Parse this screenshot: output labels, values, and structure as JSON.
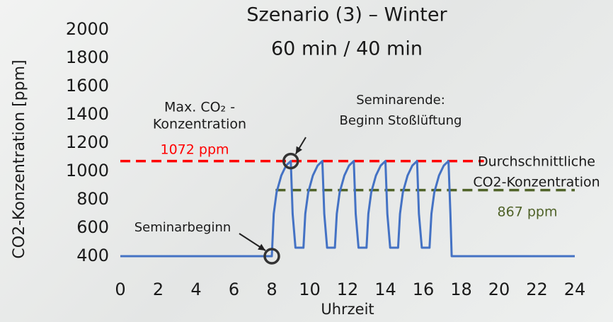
{
  "chart_data": {
    "type": "line",
    "title": [
      "Szenario (3) – Winter",
      "60 min / 40 min"
    ],
    "xlabel": "Uhrzeit",
    "ylabel": "CO2-Konzentration [ppm]",
    "x": [
      0,
      8,
      8.1,
      8.25,
      8.5,
      8.75,
      9,
      9.1,
      9.25,
      9.67,
      9.77,
      9.92,
      10.17,
      10.42,
      10.67,
      10.77,
      10.92,
      11.33,
      11.43,
      11.58,
      11.83,
      12.08,
      12.33,
      12.43,
      12.58,
      13,
      13.1,
      13.25,
      13.5,
      13.75,
      14,
      14.1,
      14.25,
      14.67,
      14.77,
      14.92,
      15.17,
      15.42,
      15.67,
      15.77,
      15.92,
      16.33,
      16.43,
      16.58,
      16.83,
      17.08,
      17.33,
      17.43,
      17.5,
      24
    ],
    "values": [
      400,
      400,
      700,
      850,
      970,
      1040,
      1072,
      700,
      460,
      460,
      700,
      850,
      970,
      1040,
      1072,
      700,
      460,
      460,
      700,
      850,
      970,
      1040,
      1072,
      700,
      460,
      460,
      700,
      850,
      970,
      1040,
      1072,
      700,
      460,
      460,
      700,
      850,
      970,
      1040,
      1072,
      700,
      460,
      460,
      700,
      850,
      970,
      1040,
      1072,
      700,
      400,
      400
    ],
    "color": "#4472c4",
    "xlim": [
      0,
      24
    ],
    "xticks": [
      0,
      2,
      4,
      6,
      8,
      10,
      12,
      14,
      16,
      18,
      20,
      22,
      24
    ],
    "ylim": [
      400,
      2000
    ],
    "yticks": [
      400,
      600,
      800,
      1000,
      1200,
      1400,
      1600,
      1800,
      2000
    ],
    "reference_lines": [
      {
        "value": 1072,
        "label": "1072 ppm",
        "caption": [
          "Max. CO₂ -",
          "Konzentration"
        ],
        "color": "#ff0000",
        "xrange": [
          0,
          19.2
        ]
      },
      {
        "value": 867,
        "label": "867 ppm",
        "caption": [
          "Durchschnittliche",
          "CO2-Konzentration"
        ],
        "color": "#4f6228",
        "xrange": [
          8.2,
          24
        ]
      }
    ],
    "annotations": [
      {
        "text": [
          "Seminarbeginn"
        ],
        "x": 8,
        "y": 400
      },
      {
        "text": [
          "Seminarende:",
          "Beginn Stoßlüftung"
        ],
        "x": 9,
        "y": 1072
      }
    ]
  }
}
